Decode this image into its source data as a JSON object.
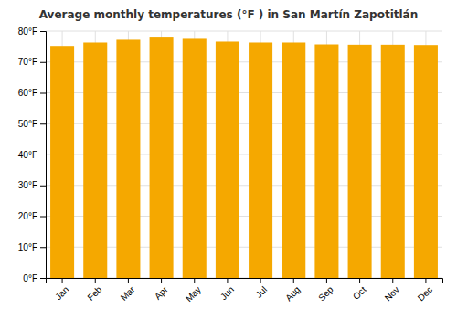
{
  "chart_data": {
    "type": "bar",
    "title": "Average monthly temperatures (°F ) in San Martín Zapotitlán",
    "categories": [
      "Jan",
      "Feb",
      "Mar",
      "Apr",
      "May",
      "Jun",
      "Jul",
      "Aug",
      "Sep",
      "Oct",
      "Nov",
      "Dec"
    ],
    "values": [
      75.2,
      76.3,
      77.2,
      77.9,
      77.5,
      76.6,
      76.3,
      76.3,
      75.7,
      75.6,
      75.6,
      75.5
    ],
    "color": "#F5A800",
    "ylim": [
      0,
      80
    ],
    "yticks": [
      {
        "value": 0,
        "label": "0°F"
      },
      {
        "value": 10,
        "label": "10°F"
      },
      {
        "value": 20,
        "label": "20°F"
      },
      {
        "value": 30,
        "label": "30°F"
      },
      {
        "value": 40,
        "label": "40°F"
      },
      {
        "value": 50,
        "label": "50°F"
      },
      {
        "value": 60,
        "label": "60°F"
      },
      {
        "value": 70,
        "label": "70°F"
      },
      {
        "value": 80,
        "label": "80°F"
      }
    ],
    "grid": true
  }
}
